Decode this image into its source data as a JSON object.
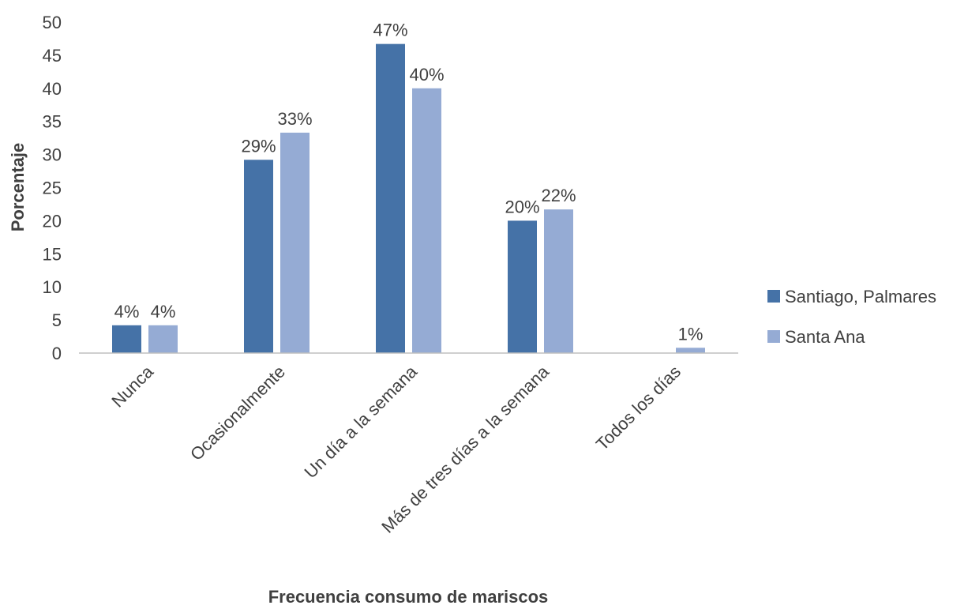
{
  "chart_data": {
    "type": "bar",
    "categories": [
      "Nunca",
      "Ocasionalmente",
      "Un día a la semana",
      "Más de tres días a la semana",
      "Todos los días"
    ],
    "series": [
      {
        "name": "Santiago, Palmares",
        "values": [
          4.2,
          29.2,
          46.7,
          20.0,
          null
        ],
        "labels": [
          "4%",
          "29%",
          "47%",
          "20%",
          ""
        ]
      },
      {
        "name": "Santa Ana",
        "values": [
          4.2,
          33.3,
          40.0,
          21.7,
          0.8
        ],
        "labels": [
          "4%",
          "33%",
          "40%",
          "22%",
          "1%"
        ]
      }
    ],
    "xlabel": "Frecuencia consumo de mariscos",
    "ylabel": "Porcentaje",
    "ylim": [
      0,
      50
    ],
    "yticks": [
      "0",
      "5",
      "10",
      "15",
      "20",
      "25",
      "30",
      "35",
      "40",
      "45",
      "50"
    ],
    "grid": false,
    "legend_position": "right"
  },
  "colors": {
    "series": [
      "#4572A7",
      "#95ABD4"
    ],
    "axis": "#404040",
    "text": "#404040"
  }
}
